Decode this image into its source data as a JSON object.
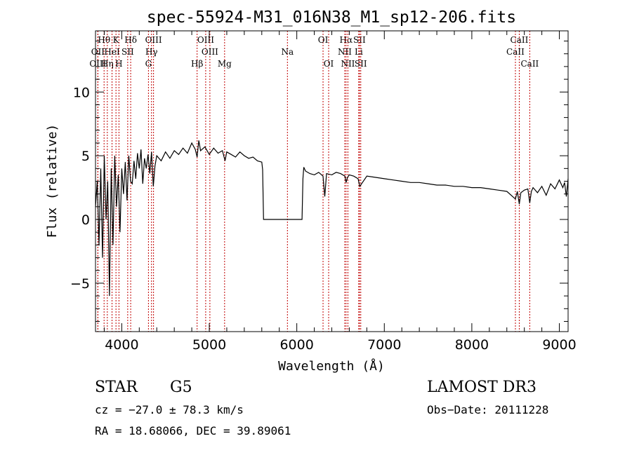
{
  "chart_data": {
    "type": "line",
    "title": "spec-55924-M31_016N38_M1_sp12-206.fits",
    "xlabel": "Wavelength (Å)",
    "ylabel": "Flux (relative)",
    "xlim": [
      3700,
      9100
    ],
    "ylim": [
      -8.8,
      14.8
    ],
    "xticks": [
      4000,
      5000,
      6000,
      7000,
      8000,
      9000
    ],
    "xtick_labels": [
      "4000",
      "5000",
      "6000",
      "7000",
      "8000",
      "9000"
    ],
    "yticks": [
      -5,
      0,
      5,
      10
    ],
    "ytick_labels": [
      "−5",
      "0",
      "5",
      "10"
    ],
    "series": [
      {
        "name": "flux",
        "x": [
          3700,
          3720,
          3740,
          3760,
          3780,
          3800,
          3820,
          3840,
          3860,
          3880,
          3900,
          3920,
          3940,
          3960,
          3980,
          4000,
          4020,
          4040,
          4060,
          4080,
          4100,
          4120,
          4140,
          4160,
          4180,
          4200,
          4220,
          4240,
          4260,
          4280,
          4300,
          4320,
          4340,
          4360,
          4380,
          4400,
          4450,
          4500,
          4550,
          4600,
          4650,
          4700,
          4750,
          4800,
          4840,
          4861,
          4880,
          4900,
          4950,
          5000,
          5050,
          5100,
          5150,
          5180,
          5200,
          5250,
          5300,
          5350,
          5400,
          5450,
          5500,
          5550,
          5600,
          5610,
          5620,
          6060,
          6070,
          6080,
          6100,
          6150,
          6200,
          6250,
          6300,
          6320,
          6340,
          6400,
          6450,
          6500,
          6550,
          6563,
          6580,
          6600,
          6650,
          6700,
          6720,
          6800,
          6900,
          7000,
          7100,
          7200,
          7300,
          7400,
          7500,
          7600,
          7700,
          7800,
          7900,
          8000,
          8100,
          8200,
          8300,
          8400,
          8498,
          8520,
          8542,
          8560,
          8600,
          8640,
          8662,
          8680,
          8700,
          8750,
          8800,
          8850,
          8900,
          8950,
          9000,
          9040,
          9060,
          9080,
          9100
        ],
        "y": [
          1,
          3,
          -2,
          4,
          -3,
          5,
          0,
          3,
          -6,
          4,
          -2,
          5,
          1,
          3.5,
          -1,
          4,
          2,
          4.5,
          1.5,
          5,
          3,
          2.8,
          4.6,
          3.2,
          5.2,
          4,
          5.5,
          2.8,
          4.8,
          4,
          5.1,
          3.6,
          5.3,
          2.6,
          4.2,
          5,
          4.6,
          5.3,
          4.8,
          5.4,
          5.1,
          5.6,
          5.2,
          6,
          5.5,
          4.9,
          6.2,
          5.4,
          5.7,
          5.1,
          5.6,
          5.2,
          5.4,
          4.6,
          5.3,
          5.1,
          4.9,
          5.3,
          5.0,
          4.8,
          4.9,
          4.6,
          4.5,
          3.9,
          0,
          0,
          3.2,
          4.1,
          3.8,
          3.6,
          3.5,
          3.7,
          3.4,
          1.8,
          3.6,
          3.5,
          3.7,
          3.6,
          3.4,
          2.9,
          3.3,
          3.5,
          3.4,
          3.2,
          2.6,
          3.4,
          3.3,
          3.2,
          3.1,
          3,
          2.9,
          2.9,
          2.8,
          2.7,
          2.7,
          2.6,
          2.6,
          2.5,
          2.5,
          2.4,
          2.3,
          2.2,
          1.6,
          2.2,
          1.2,
          2.1,
          2.3,
          2.4,
          1.3,
          2.2,
          2.5,
          2.1,
          2.6,
          1.9,
          2.8,
          2.4,
          3.1,
          2.5,
          2.9,
          1.8,
          3.2
        ]
      }
    ],
    "spectral_lines": [
      {
        "label": "Hθ",
        "wave": 3798,
        "row": 0
      },
      {
        "label": "OII",
        "wave": 3727,
        "row": 1
      },
      {
        "label": "OIII",
        "wave": 3727,
        "row": 2
      },
      {
        "label": "K",
        "wave": 3934,
        "row": 0
      },
      {
        "label": "HeI",
        "wave": 3889,
        "row": 1
      },
      {
        "label": "Hη",
        "wave": 3835,
        "row": 2
      },
      {
        "label": "Hδ",
        "wave": 4102,
        "row": 0
      },
      {
        "label": "SII",
        "wave": 4068,
        "row": 1
      },
      {
        "label": "H",
        "wave": 3968,
        "row": 2
      },
      {
        "label": "OIII",
        "wave": 4363,
        "row": 0
      },
      {
        "label": "Hγ",
        "wave": 4340,
        "row": 1
      },
      {
        "label": "G",
        "wave": 4305,
        "row": 2
      },
      {
        "label": "Hβ",
        "wave": 4861,
        "row": 2
      },
      {
        "label": "OIII",
        "wave": 4959,
        "row": 0
      },
      {
        "label": "OIII",
        "wave": 5007,
        "row": 1
      },
      {
        "label": "Mg",
        "wave": 5175,
        "row": 2
      },
      {
        "label": "Na",
        "wave": 5893,
        "row": 1
      },
      {
        "label": "OI",
        "wave": 6300,
        "row": 0
      },
      {
        "label": "OI",
        "wave": 6364,
        "row": 2
      },
      {
        "label": "Hα",
        "wave": 6563,
        "row": 0
      },
      {
        "label": "SII",
        "wave": 6716,
        "row": 0
      },
      {
        "label": "NII",
        "wave": 6548,
        "row": 1
      },
      {
        "label": "Li",
        "wave": 6708,
        "row": 1
      },
      {
        "label": "NII",
        "wave": 6584,
        "row": 2
      },
      {
        "label": "SII",
        "wave": 6731,
        "row": 2
      },
      {
        "label": "CaII",
        "wave": 8542,
        "row": 0
      },
      {
        "label": "CaII",
        "wave": 8498,
        "row": 1
      },
      {
        "label": "CaII",
        "wave": 8662,
        "row": 2
      }
    ]
  },
  "info": {
    "class": "STAR",
    "subclass": "G5",
    "survey": "LAMOST DR3",
    "cz": "cz = −27.0 ± 78.3 km/s",
    "obs_date": "Obs−Date: 20111228",
    "radec": "RA =  18.68066, DEC =  39.89061"
  }
}
